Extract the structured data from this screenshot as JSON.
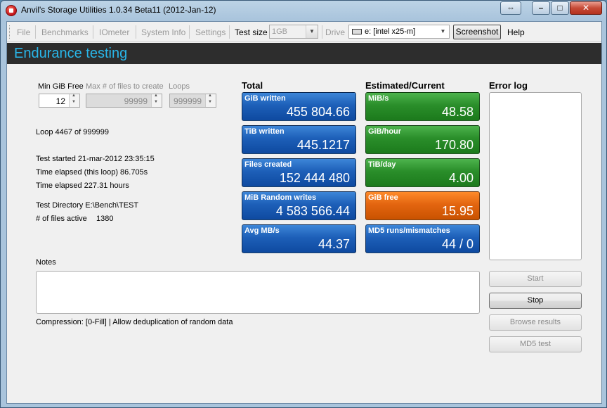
{
  "window": {
    "title": "Anvil's Storage Utilities 1.0.34 Beta11 (2012-Jan-12)",
    "title_buttons": [
      "⇔",
      "–",
      "□",
      "✕"
    ]
  },
  "menubar": {
    "items": [
      {
        "label": "File",
        "enabled": false
      },
      {
        "label": "Benchmarks",
        "enabled": false
      },
      {
        "label": "IOmeter",
        "enabled": false
      },
      {
        "label": "System Info",
        "enabled": false
      },
      {
        "label": "Settings",
        "enabled": false
      }
    ],
    "test_size_label": "Test size",
    "test_size_value": "1GB",
    "drive_label": "Drive",
    "drive_value": "e: [intel x25-m]",
    "screenshot_label": "Screenshot",
    "help_label": "Help"
  },
  "header": {
    "title": "Endurance testing"
  },
  "params": {
    "min_gib_free_label": "Min GiB Free",
    "min_gib_free_value": "12",
    "max_files_label": "Max # of files to create",
    "max_files_value": "99999",
    "loops_label": "Loops",
    "loops_value": "999999"
  },
  "info": {
    "loop": "Loop 4467 of 999999",
    "test_started": "Test started 21-mar-2012 23:35:15",
    "elapsed_loop": "Time elapsed (this loop) 86.705s",
    "elapsed_total": "Time elapsed 227.31 hours",
    "test_directory": "Test Directory E:\\Bench\\TEST",
    "files_active_label": "# of files active",
    "files_active_value": "1380"
  },
  "columns": {
    "total": "Total",
    "estimated": "Estimated/Current",
    "error_log": "Error log"
  },
  "total_tiles": [
    {
      "label": "GiB written",
      "value": "455 804.66",
      "color": "#1d5fb8"
    },
    {
      "label": "TiB written",
      "value": "445.1217",
      "color": "#1d5fb8"
    },
    {
      "label": "Files created",
      "value": "152 444 480",
      "color": "#1d5fb8"
    },
    {
      "label": "MiB Random writes",
      "value": "4 583 566.44",
      "color": "#1d5fb8"
    },
    {
      "label": "Avg MB/s",
      "value": "44.37",
      "color": "#1d5fb8"
    }
  ],
  "estimated_tiles": [
    {
      "label": "MiB/s",
      "value": "48.58",
      "color": "#2a8e2a"
    },
    {
      "label": "GiB/hour",
      "value": "170.80",
      "color": "#2a8e2a"
    },
    {
      "label": "TiB/day",
      "value": "4.00",
      "color": "#2a8e2a"
    },
    {
      "label": "GiB free",
      "value": "15.95",
      "color": "#e36510"
    },
    {
      "label": "MD5 runs/mismatches",
      "value": "44 / 0",
      "color": "#1d5fb8"
    }
  ],
  "notes": {
    "label": "Notes",
    "value": ""
  },
  "compression": "Compression: [0-Fill]  | Allow deduplication of random data",
  "buttons": {
    "start": "Start",
    "stop": "Stop",
    "browse": "Browse results",
    "md5": "MD5 test"
  }
}
